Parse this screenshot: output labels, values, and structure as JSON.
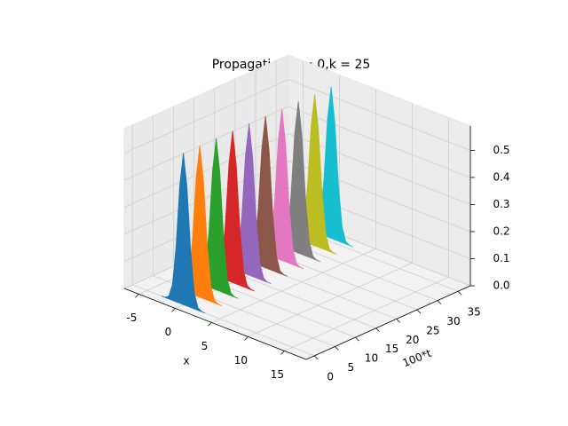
{
  "chart_data": {
    "type": "waterfall3d",
    "title": "Propagation,V = 0,k = 25",
    "xlabel": "x",
    "ylabel": "100*t",
    "x": [
      -3,
      -2.5,
      -2,
      -1.5,
      -1,
      -0.5,
      0,
      0.5,
      1,
      1.5,
      2,
      2.5,
      3
    ],
    "series": [
      {
        "t": 0,
        "color": "#1f77b4",
        "values": [
          0,
          0.001,
          0.01,
          0.059,
          0.206,
          0.436,
          0.56,
          0.436,
          0.206,
          0.059,
          0.01,
          0.001,
          0
        ]
      },
      {
        "t": 4,
        "color": "#ff7f0e",
        "values": [
          0,
          0.001,
          0.01,
          0.059,
          0.206,
          0.436,
          0.56,
          0.436,
          0.206,
          0.059,
          0.01,
          0.001,
          0
        ]
      },
      {
        "t": 8,
        "color": "#2ca02c",
        "values": [
          0,
          0.001,
          0.01,
          0.059,
          0.206,
          0.436,
          0.56,
          0.436,
          0.206,
          0.059,
          0.01,
          0.001,
          0
        ]
      },
      {
        "t": 12,
        "color": "#d62728",
        "values": [
          0,
          0.001,
          0.01,
          0.059,
          0.206,
          0.436,
          0.56,
          0.436,
          0.206,
          0.059,
          0.01,
          0.001,
          0
        ]
      },
      {
        "t": 16,
        "color": "#9467bd",
        "values": [
          0,
          0.001,
          0.01,
          0.059,
          0.206,
          0.436,
          0.56,
          0.436,
          0.206,
          0.059,
          0.01,
          0.001,
          0
        ]
      },
      {
        "t": 20,
        "color": "#8c564b",
        "values": [
          0,
          0.001,
          0.01,
          0.059,
          0.206,
          0.436,
          0.56,
          0.436,
          0.206,
          0.059,
          0.01,
          0.001,
          0
        ]
      },
      {
        "t": 24,
        "color": "#e377c2",
        "values": [
          0,
          0.001,
          0.01,
          0.059,
          0.206,
          0.436,
          0.56,
          0.436,
          0.206,
          0.059,
          0.01,
          0.001,
          0
        ]
      },
      {
        "t": 28,
        "color": "#7f7f7f",
        "values": [
          0,
          0.001,
          0.01,
          0.059,
          0.206,
          0.436,
          0.56,
          0.436,
          0.206,
          0.059,
          0.01,
          0.001,
          0
        ]
      },
      {
        "t": 32,
        "color": "#bcbd22",
        "values": [
          0,
          0.001,
          0.01,
          0.059,
          0.206,
          0.436,
          0.56,
          0.436,
          0.206,
          0.059,
          0.01,
          0.001,
          0
        ]
      },
      {
        "t": 36,
        "color": "#17becf",
        "values": [
          0,
          0.001,
          0.01,
          0.059,
          0.206,
          0.436,
          0.56,
          0.436,
          0.206,
          0.059,
          0.01,
          0.001,
          0
        ]
      }
    ],
    "xlim": [
      -7,
      18
    ],
    "ylim": [
      -2,
      38
    ],
    "zlim": [
      0,
      0.59
    ],
    "xticks": [
      -5,
      0,
      5,
      10,
      15
    ],
    "yticks": [
      0,
      5,
      10,
      15,
      20,
      25,
      30,
      35
    ],
    "zticks": [
      {
        "value": 0,
        "label": "0.0"
      },
      0.1,
      0.2,
      0.3,
      0.4,
      0.5
    ],
    "grid": true
  }
}
